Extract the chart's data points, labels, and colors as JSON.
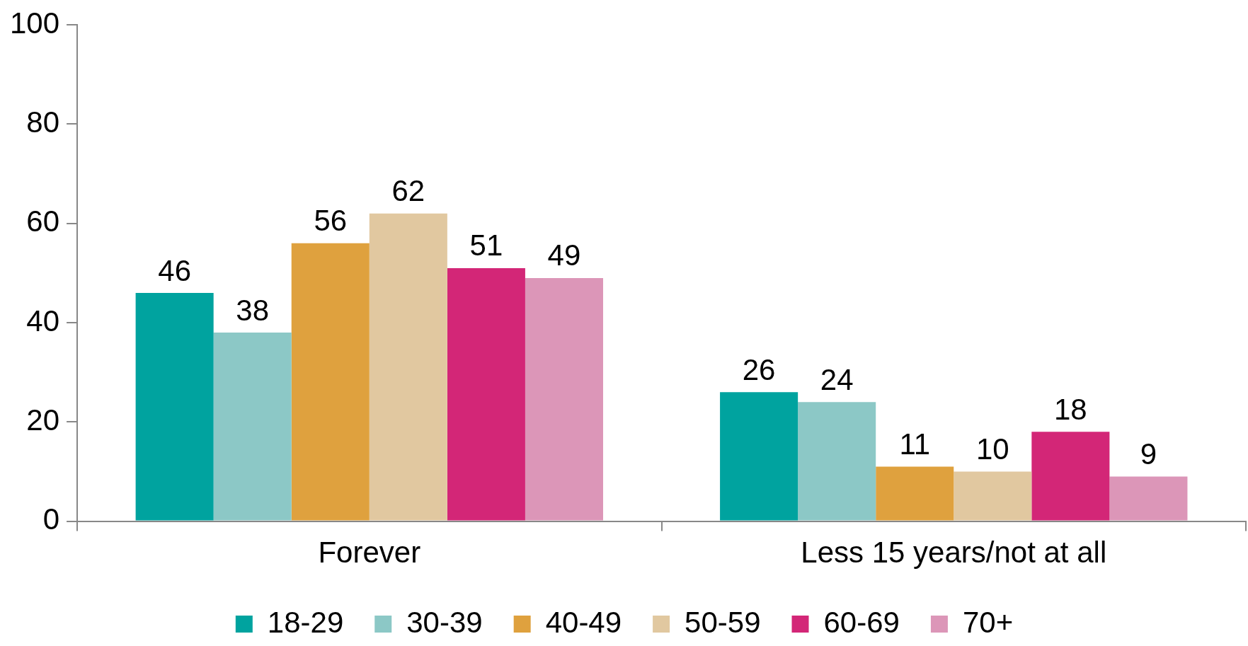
{
  "chart_data": {
    "type": "bar",
    "categories": [
      "Forever",
      "Less 15 years/not at all"
    ],
    "series": [
      {
        "name": "18-29",
        "color": "#00a39f",
        "values": [
          46,
          26
        ]
      },
      {
        "name": "30-39",
        "color": "#8cc8c6",
        "values": [
          38,
          24
        ]
      },
      {
        "name": "40-49",
        "color": "#dfa13e",
        "values": [
          56,
          11
        ]
      },
      {
        "name": "50-59",
        "color": "#e1c8a0",
        "values": [
          62,
          10
        ]
      },
      {
        "name": "60-69",
        "color": "#d32677",
        "values": [
          51,
          18
        ]
      },
      {
        "name": "70+",
        "color": "#dc96b8",
        "values": [
          49,
          9
        ]
      }
    ],
    "ylim": [
      0,
      100
    ],
    "yticks": [
      0,
      20,
      40,
      60,
      80,
      100
    ],
    "legend": "bottom",
    "data_labels": true
  }
}
